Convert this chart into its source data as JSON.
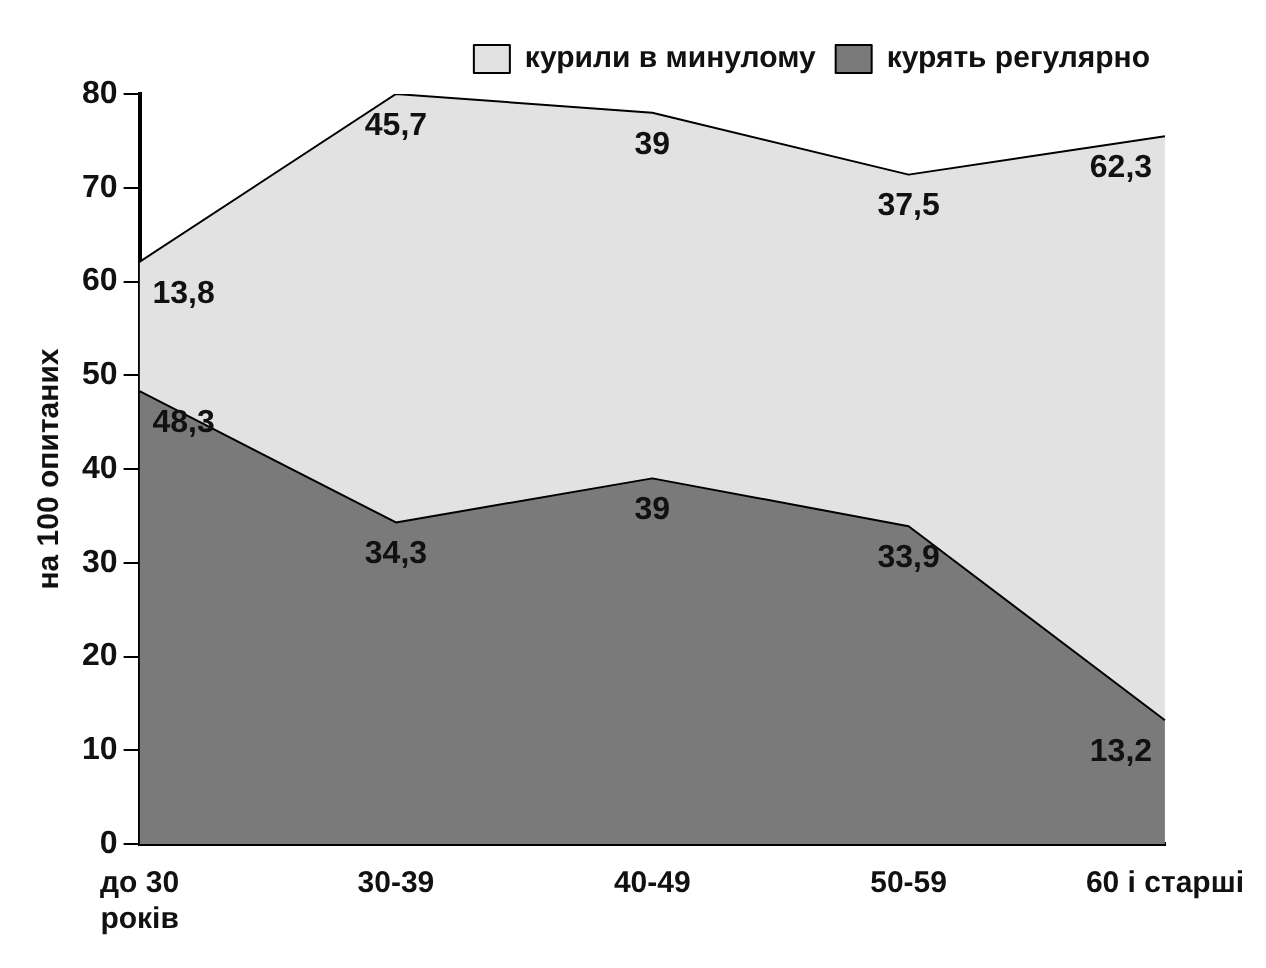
{
  "chart_data": {
    "type": "area",
    "stacked": true,
    "ylabel": "на 100 опитаних",
    "categories": [
      "до 30 років",
      "30-39",
      "40-49",
      "50-59",
      "60 і старші"
    ],
    "series": [
      {
        "name": "курять регулярно",
        "color": "#7a7a7a",
        "values": [
          48.3,
          34.3,
          39,
          33.9,
          13.2
        ],
        "value_labels": [
          "48,3",
          "34,3",
          "39",
          "33,9",
          "13,2"
        ]
      },
      {
        "name": "курили в минулому",
        "color": "#e2e2e2",
        "values": [
          13.8,
          45.7,
          39,
          37.5,
          62.3
        ],
        "value_labels": [
          "13,8",
          "45,7",
          "39",
          "37,5",
          "62,3"
        ]
      }
    ],
    "ylim": [
      0,
      80
    ],
    "yticks": [
      0,
      10,
      20,
      30,
      40,
      50,
      60,
      70,
      80
    ],
    "grid": false,
    "legend": "top right"
  }
}
